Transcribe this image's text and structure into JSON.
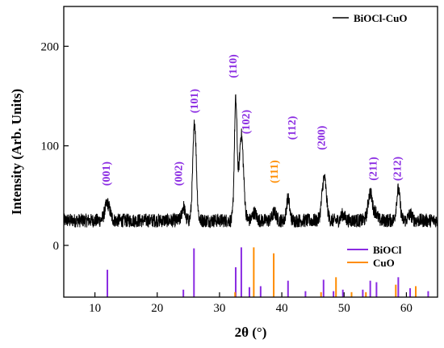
{
  "chart_data": {
    "type": "line",
    "xlabel": "2θ (°)",
    "ylabel": "Intensity (Arb. Units)",
    "xlim": [
      5,
      65
    ],
    "ylim": [
      -52,
      240
    ],
    "x_ticks": [
      10,
      20,
      30,
      40,
      50,
      60
    ],
    "y_ticks": [
      0,
      100,
      200
    ],
    "colors": {
      "line": "#000000",
      "bioc": "#8a2be2",
      "cuo": "#ff8c00"
    },
    "top_legend": {
      "label": "BiOCl-CuO",
      "placement": "top-right"
    },
    "bottom_legend": [
      {
        "label": "BiOCl",
        "color": "#8a2be2"
      },
      {
        "label": "CuO",
        "color": "#ff8c00"
      }
    ],
    "series": [
      {
        "name": "BiOCl-CuO",
        "baseline": 25,
        "noise": 7,
        "peaks": [
          {
            "x": 12.0,
            "height": 17,
            "width": 0.4
          },
          {
            "x": 24.2,
            "height": 14,
            "width": 0.25
          },
          {
            "x": 26.0,
            "height": 98,
            "width": 0.28
          },
          {
            "x": 32.6,
            "height": 118,
            "width": 0.22
          },
          {
            "x": 33.5,
            "height": 86,
            "width": 0.35
          },
          {
            "x": 35.6,
            "height": 8,
            "width": 0.3
          },
          {
            "x": 38.8,
            "height": 8,
            "width": 0.3
          },
          {
            "x": 41.0,
            "height": 22,
            "width": 0.25
          },
          {
            "x": 46.8,
            "height": 43,
            "width": 0.35
          },
          {
            "x": 49.8,
            "height": 6,
            "width": 0.3
          },
          {
            "x": 54.2,
            "height": 28,
            "width": 0.35
          },
          {
            "x": 55.1,
            "height": 8,
            "width": 0.25
          },
          {
            "x": 58.7,
            "height": 31,
            "width": 0.28
          },
          {
            "x": 60.6,
            "height": 6,
            "width": 0.3
          }
        ]
      }
    ],
    "reference_bioc": [
      {
        "x": 12.0,
        "h": 0.55
      },
      {
        "x": 24.2,
        "h": 0.15
      },
      {
        "x": 25.9,
        "h": 0.98
      },
      {
        "x": 32.6,
        "h": 0.6
      },
      {
        "x": 33.5,
        "h": 1.0
      },
      {
        "x": 34.8,
        "h": 0.2
      },
      {
        "x": 36.6,
        "h": 0.22
      },
      {
        "x": 41.0,
        "h": 0.33
      },
      {
        "x": 43.8,
        "h": 0.12
      },
      {
        "x": 46.7,
        "h": 0.35
      },
      {
        "x": 48.3,
        "h": 0.12
      },
      {
        "x": 49.8,
        "h": 0.15
      },
      {
        "x": 53.0,
        "h": 0.15
      },
      {
        "x": 54.2,
        "h": 0.33
      },
      {
        "x": 55.2,
        "h": 0.3
      },
      {
        "x": 58.7,
        "h": 0.4
      },
      {
        "x": 60.6,
        "h": 0.18
      },
      {
        "x": 63.5,
        "h": 0.12
      }
    ],
    "reference_cuo": [
      {
        "x": 32.5,
        "h": 0.1
      },
      {
        "x": 35.5,
        "h": 1.0
      },
      {
        "x": 38.7,
        "h": 0.88
      },
      {
        "x": 46.3,
        "h": 0.1
      },
      {
        "x": 48.7,
        "h": 0.4
      },
      {
        "x": 51.2,
        "h": 0.1
      },
      {
        "x": 53.5,
        "h": 0.1
      },
      {
        "x": 58.3,
        "h": 0.25
      },
      {
        "x": 61.5,
        "h": 0.22
      }
    ],
    "annotations": [
      {
        "label": "(001)",
        "x": 12.0,
        "y": 72,
        "color": "#8a2be2"
      },
      {
        "label": "(002)",
        "x": 23.6,
        "y": 72,
        "color": "#8a2be2"
      },
      {
        "label": "(101)",
        "x": 26.1,
        "y": 145,
        "color": "#8a2be2"
      },
      {
        "label": "(110)",
        "x": 32.3,
        "y": 180,
        "color": "#8a2be2"
      },
      {
        "label": "(102)",
        "x": 34.4,
        "y": 124,
        "color": "#8a2be2"
      },
      {
        "label": "(111)",
        "x": 38.9,
        "y": 74,
        "color": "#ff8c00"
      },
      {
        "label": "(112)",
        "x": 41.8,
        "y": 118,
        "color": "#8a2be2"
      },
      {
        "label": "(200)",
        "x": 46.5,
        "y": 108,
        "color": "#8a2be2"
      },
      {
        "label": "(211)",
        "x": 54.8,
        "y": 77,
        "color": "#8a2be2"
      },
      {
        "label": "(212)",
        "x": 58.7,
        "y": 77,
        "color": "#8a2be2"
      }
    ]
  }
}
